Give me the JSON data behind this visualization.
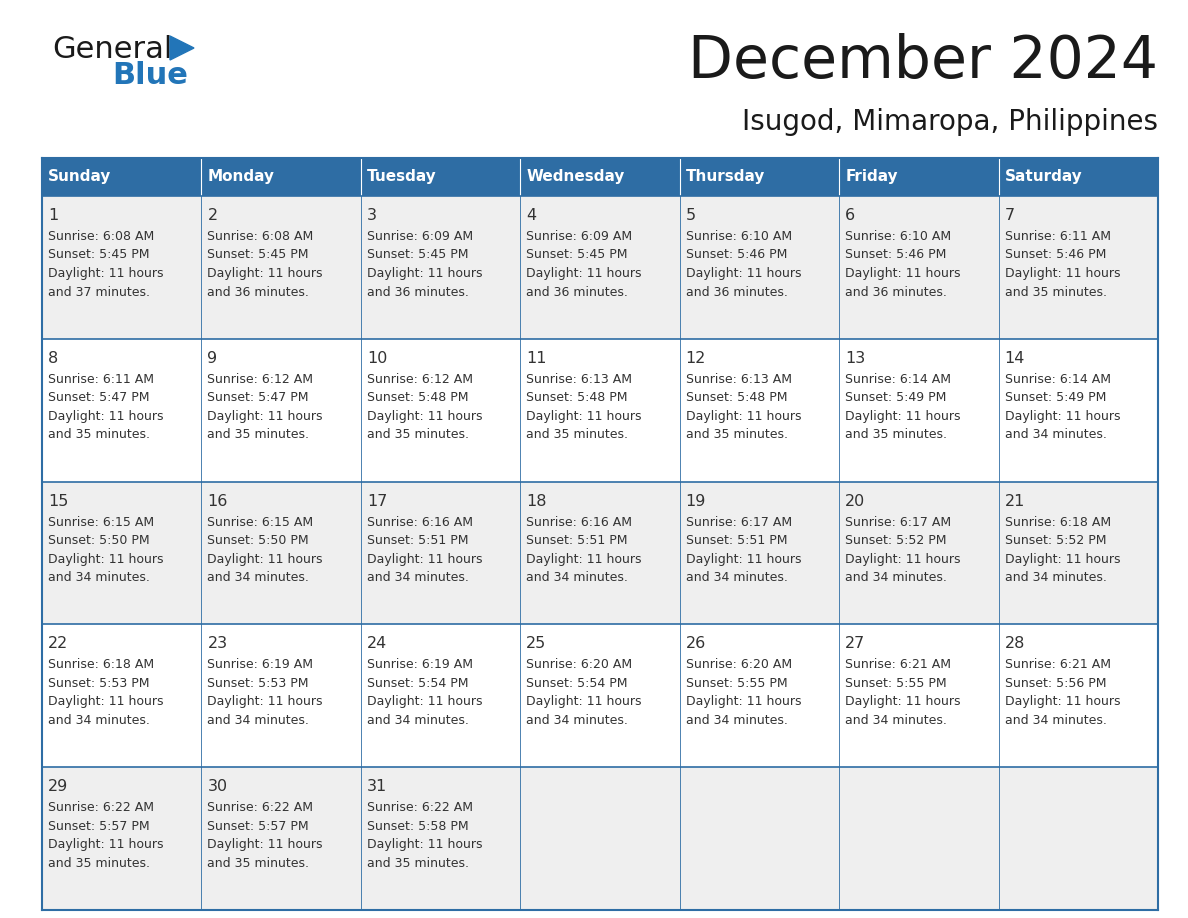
{
  "title": "December 2024",
  "subtitle": "Isugod, Mimaropa, Philippines",
  "days_of_week": [
    "Sunday",
    "Monday",
    "Tuesday",
    "Wednesday",
    "Thursday",
    "Friday",
    "Saturday"
  ],
  "header_bg": "#2E6DA4",
  "header_text": "#FFFFFF",
  "cell_bg_odd": "#EFEFEF",
  "cell_bg_even": "#FFFFFF",
  "border_color": "#2E6DA4",
  "day_num_color": "#333333",
  "cell_text_color": "#333333",
  "title_color": "#1a1a1a",
  "logo_general_color": "#1a1a1a",
  "logo_blue_color": "#2275b8",
  "calendar_data": [
    [
      {
        "day": 1,
        "sunrise": "6:08 AM",
        "sunset": "5:45 PM",
        "daylight_min": "37"
      },
      {
        "day": 2,
        "sunrise": "6:08 AM",
        "sunset": "5:45 PM",
        "daylight_min": "36"
      },
      {
        "day": 3,
        "sunrise": "6:09 AM",
        "sunset": "5:45 PM",
        "daylight_min": "36"
      },
      {
        "day": 4,
        "sunrise": "6:09 AM",
        "sunset": "5:45 PM",
        "daylight_min": "36"
      },
      {
        "day": 5,
        "sunrise": "6:10 AM",
        "sunset": "5:46 PM",
        "daylight_min": "36"
      },
      {
        "day": 6,
        "sunrise": "6:10 AM",
        "sunset": "5:46 PM",
        "daylight_min": "36"
      },
      {
        "day": 7,
        "sunrise": "6:11 AM",
        "sunset": "5:46 PM",
        "daylight_min": "35"
      }
    ],
    [
      {
        "day": 8,
        "sunrise": "6:11 AM",
        "sunset": "5:47 PM",
        "daylight_min": "35"
      },
      {
        "day": 9,
        "sunrise": "6:12 AM",
        "sunset": "5:47 PM",
        "daylight_min": "35"
      },
      {
        "day": 10,
        "sunrise": "6:12 AM",
        "sunset": "5:48 PM",
        "daylight_min": "35"
      },
      {
        "day": 11,
        "sunrise": "6:13 AM",
        "sunset": "5:48 PM",
        "daylight_min": "35"
      },
      {
        "day": 12,
        "sunrise": "6:13 AM",
        "sunset": "5:48 PM",
        "daylight_min": "35"
      },
      {
        "day": 13,
        "sunrise": "6:14 AM",
        "sunset": "5:49 PM",
        "daylight_min": "35"
      },
      {
        "day": 14,
        "sunrise": "6:14 AM",
        "sunset": "5:49 PM",
        "daylight_min": "34"
      }
    ],
    [
      {
        "day": 15,
        "sunrise": "6:15 AM",
        "sunset": "5:50 PM",
        "daylight_min": "34"
      },
      {
        "day": 16,
        "sunrise": "6:15 AM",
        "sunset": "5:50 PM",
        "daylight_min": "34"
      },
      {
        "day": 17,
        "sunrise": "6:16 AM",
        "sunset": "5:51 PM",
        "daylight_min": "34"
      },
      {
        "day": 18,
        "sunrise": "6:16 AM",
        "sunset": "5:51 PM",
        "daylight_min": "34"
      },
      {
        "day": 19,
        "sunrise": "6:17 AM",
        "sunset": "5:51 PM",
        "daylight_min": "34"
      },
      {
        "day": 20,
        "sunrise": "6:17 AM",
        "sunset": "5:52 PM",
        "daylight_min": "34"
      },
      {
        "day": 21,
        "sunrise": "6:18 AM",
        "sunset": "5:52 PM",
        "daylight_min": "34"
      }
    ],
    [
      {
        "day": 22,
        "sunrise": "6:18 AM",
        "sunset": "5:53 PM",
        "daylight_min": "34"
      },
      {
        "day": 23,
        "sunrise": "6:19 AM",
        "sunset": "5:53 PM",
        "daylight_min": "34"
      },
      {
        "day": 24,
        "sunrise": "6:19 AM",
        "sunset": "5:54 PM",
        "daylight_min": "34"
      },
      {
        "day": 25,
        "sunrise": "6:20 AM",
        "sunset": "5:54 PM",
        "daylight_min": "34"
      },
      {
        "day": 26,
        "sunrise": "6:20 AM",
        "sunset": "5:55 PM",
        "daylight_min": "34"
      },
      {
        "day": 27,
        "sunrise": "6:21 AM",
        "sunset": "5:55 PM",
        "daylight_min": "34"
      },
      {
        "day": 28,
        "sunrise": "6:21 AM",
        "sunset": "5:56 PM",
        "daylight_min": "34"
      }
    ],
    [
      {
        "day": 29,
        "sunrise": "6:22 AM",
        "sunset": "5:57 PM",
        "daylight_min": "35"
      },
      {
        "day": 30,
        "sunrise": "6:22 AM",
        "sunset": "5:57 PM",
        "daylight_min": "35"
      },
      {
        "day": 31,
        "sunrise": "6:22 AM",
        "sunset": "5:58 PM",
        "daylight_min": "35"
      },
      null,
      null,
      null,
      null
    ]
  ]
}
